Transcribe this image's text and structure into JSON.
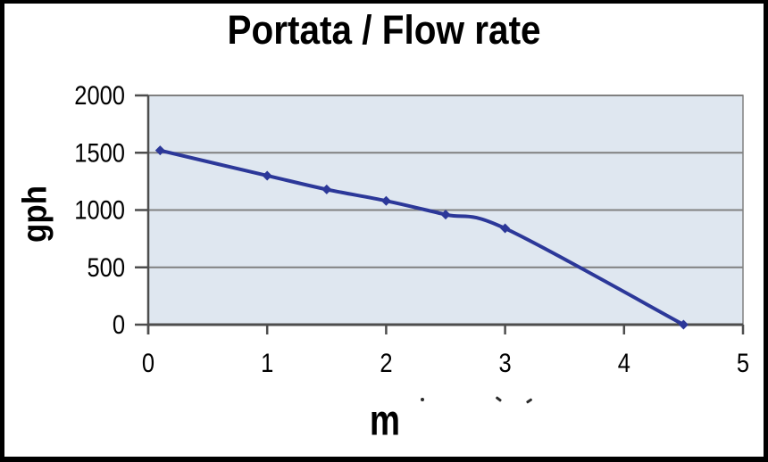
{
  "frame": {
    "background": "#ffffff",
    "border_color": "#000000"
  },
  "chart_data": {
    "type": "line",
    "title": "Portata / Flow rate",
    "xlabel": "m",
    "ylabel": "gph",
    "series": [
      {
        "name": "Portata / Flow rate",
        "x": [
          0.1,
          1.0,
          1.5,
          2.0,
          2.5,
          3.0,
          4.5
        ],
        "y": [
          1520,
          1300,
          1180,
          1080,
          960,
          840,
          0
        ]
      }
    ],
    "xlim": [
      0,
      5
    ],
    "ylim": [
      0,
      2000
    ],
    "xticks": [
      0,
      1,
      2,
      3,
      4,
      5
    ],
    "yticks": [
      0,
      500,
      1000,
      1500,
      2000
    ],
    "grid": "horizontal",
    "legend": "none",
    "smooth_line": true,
    "marker": "diamond",
    "line_color": "#2c3899",
    "marker_color": "#2c3899",
    "plot_bg": "#dfe7f0",
    "gridline_color": "#808080",
    "axis_color": "#4d4d4d",
    "tick_label_color": "#000000"
  }
}
